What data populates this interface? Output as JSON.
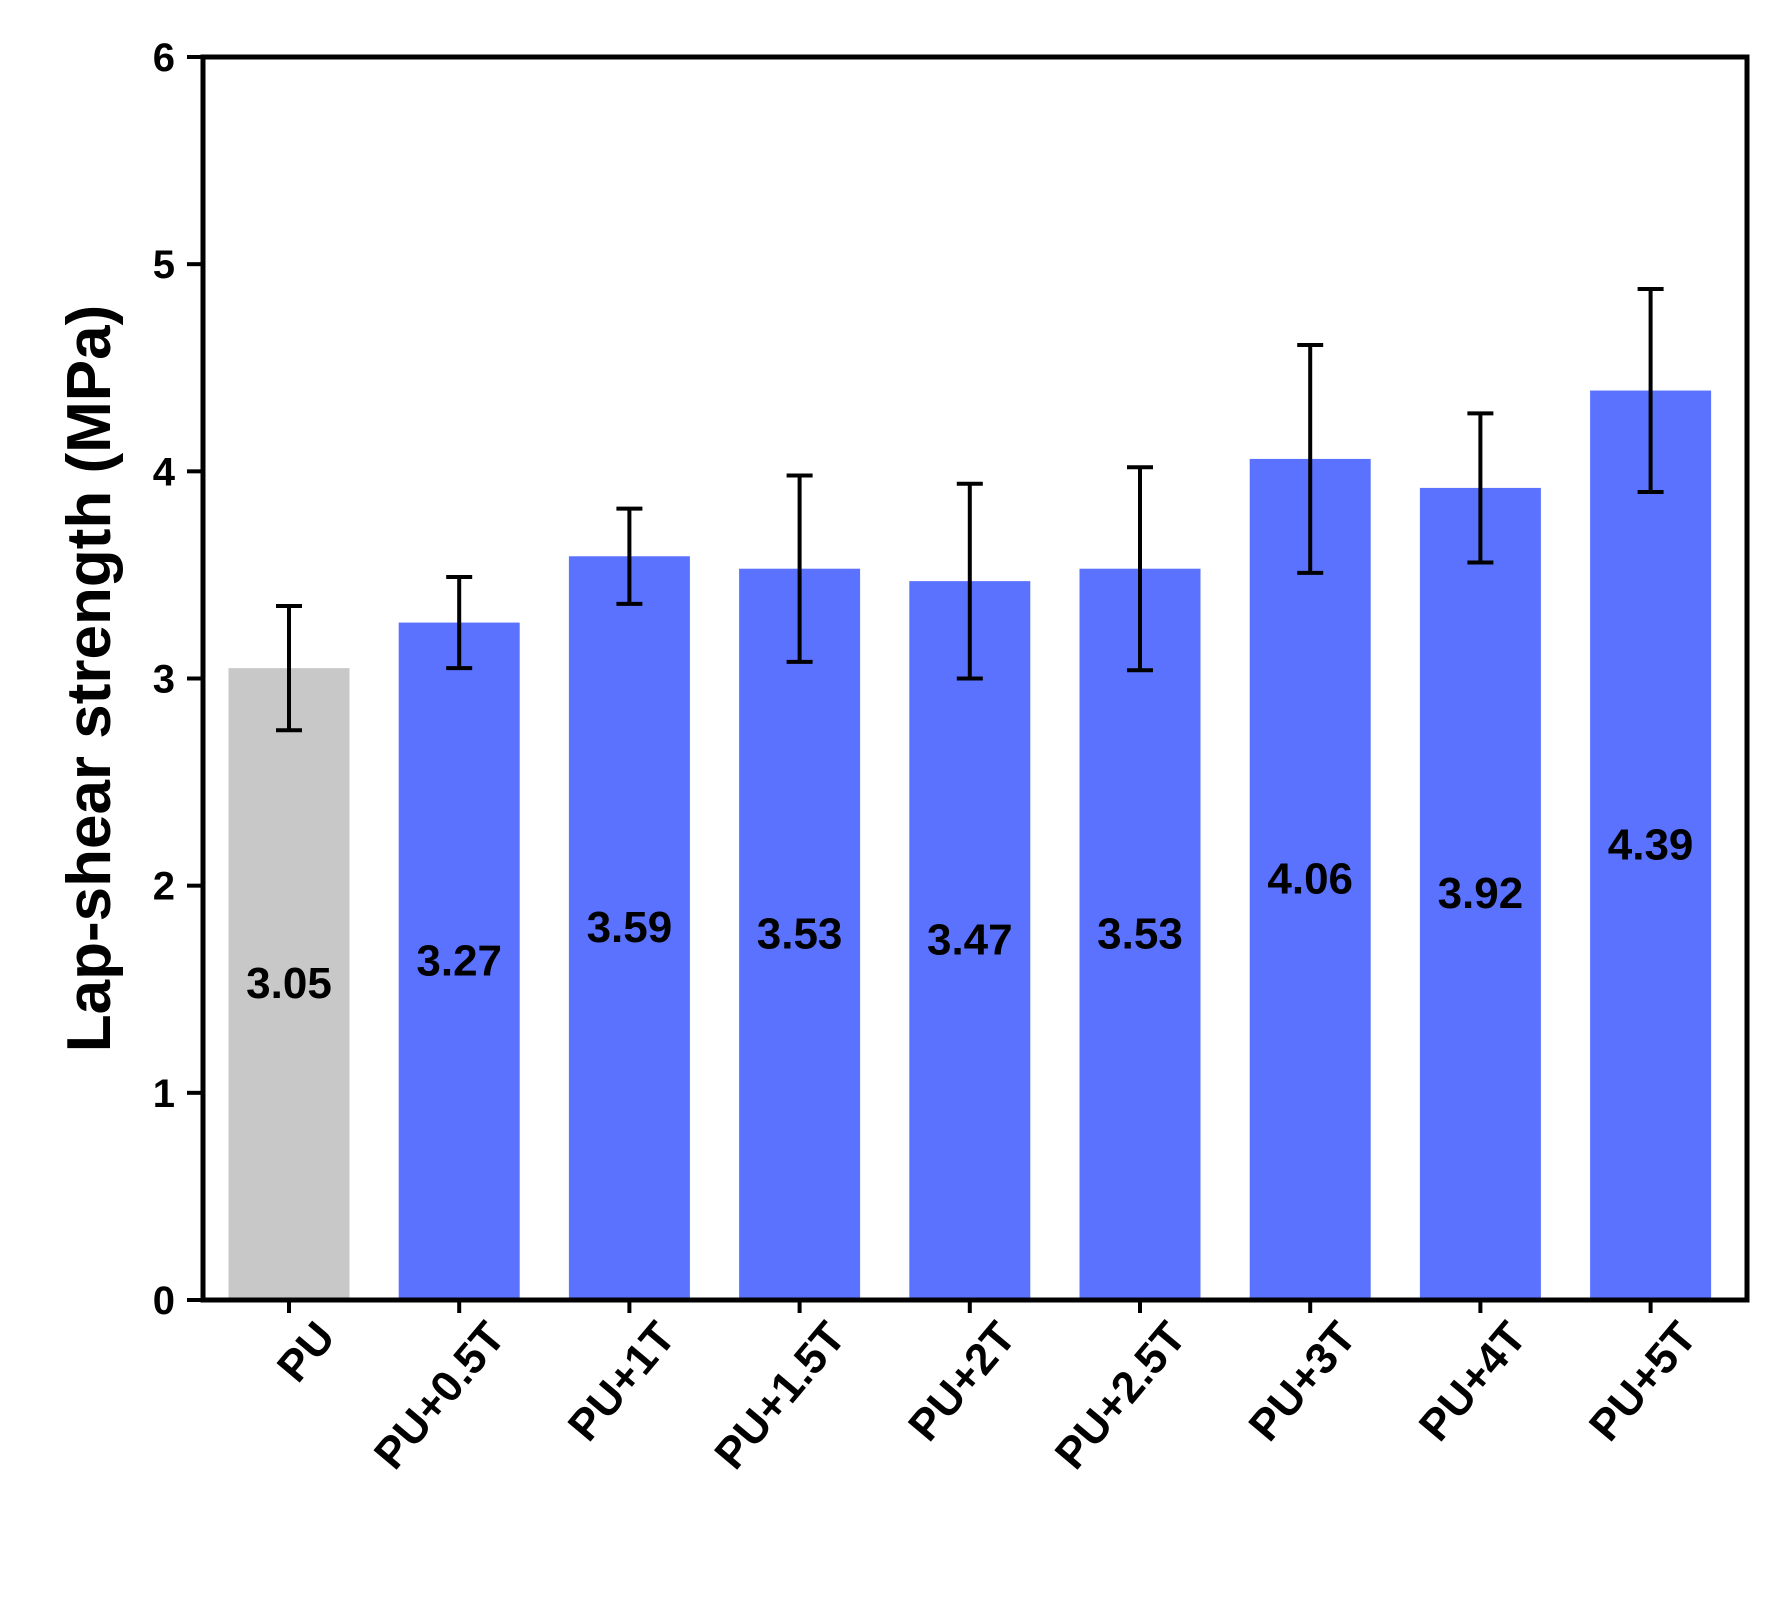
{
  "chart_data": {
    "type": "bar",
    "title": "",
    "xlabel": "",
    "ylabel": "Lap-shear strength (MPa)",
    "ylim": [
      0,
      6
    ],
    "yticks": [
      0,
      1,
      2,
      3,
      4,
      5,
      6
    ],
    "grid": false,
    "legend": "none",
    "categories": [
      "PU",
      "PU+0.5T",
      "PU+1T",
      "PU+1.5T",
      "PU+2T",
      "PU+2.5T",
      "PU+3T",
      "PU+4T",
      "PU+5T"
    ],
    "values": [
      3.05,
      3.27,
      3.59,
      3.53,
      3.47,
      3.53,
      4.06,
      3.92,
      4.39
    ],
    "value_labels": [
      "3.05",
      "3.27",
      "3.59",
      "3.53",
      "3.47",
      "3.53",
      "4.06",
      "3.92",
      "4.39"
    ],
    "errors": [
      0.3,
      0.22,
      0.23,
      0.45,
      0.47,
      0.49,
      0.55,
      0.36,
      0.49
    ],
    "bar_colors": [
      "#c8c8c8",
      "#5b72ff",
      "#5b72ff",
      "#5b72ff",
      "#5b72ff",
      "#5b72ff",
      "#5b72ff",
      "#5b72ff",
      "#5b72ff"
    ]
  }
}
